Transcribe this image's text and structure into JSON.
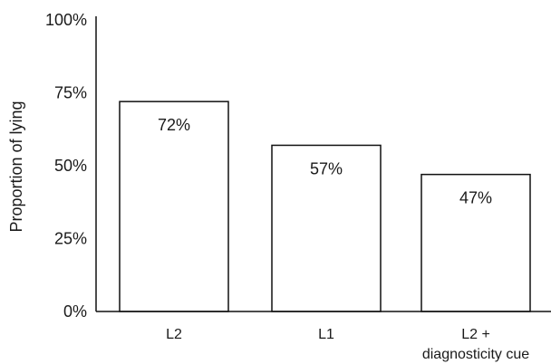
{
  "chart_data": {
    "type": "bar",
    "categories": [
      [
        "L2"
      ],
      [
        "L1"
      ],
      [
        "L2 +",
        "diagnosticity cue"
      ]
    ],
    "values": [
      72,
      57,
      47
    ],
    "data_labels": [
      "72%",
      "57%",
      "47%"
    ],
    "title": "",
    "xlabel": "",
    "ylabel": "Proportion of lying",
    "ylim": [
      0,
      100
    ],
    "yticks": [
      {
        "value": 0,
        "label": "0%"
      },
      {
        "value": 25,
        "label": "25%"
      },
      {
        "value": 50,
        "label": "50%"
      },
      {
        "value": 75,
        "label": "75%"
      },
      {
        "value": 100,
        "label": "100%"
      }
    ],
    "grid": false,
    "legend": "none",
    "colors": {
      "bar_fill": "#ffffff",
      "bar_stroke": "#111111",
      "text": "#1a1a1a"
    }
  }
}
